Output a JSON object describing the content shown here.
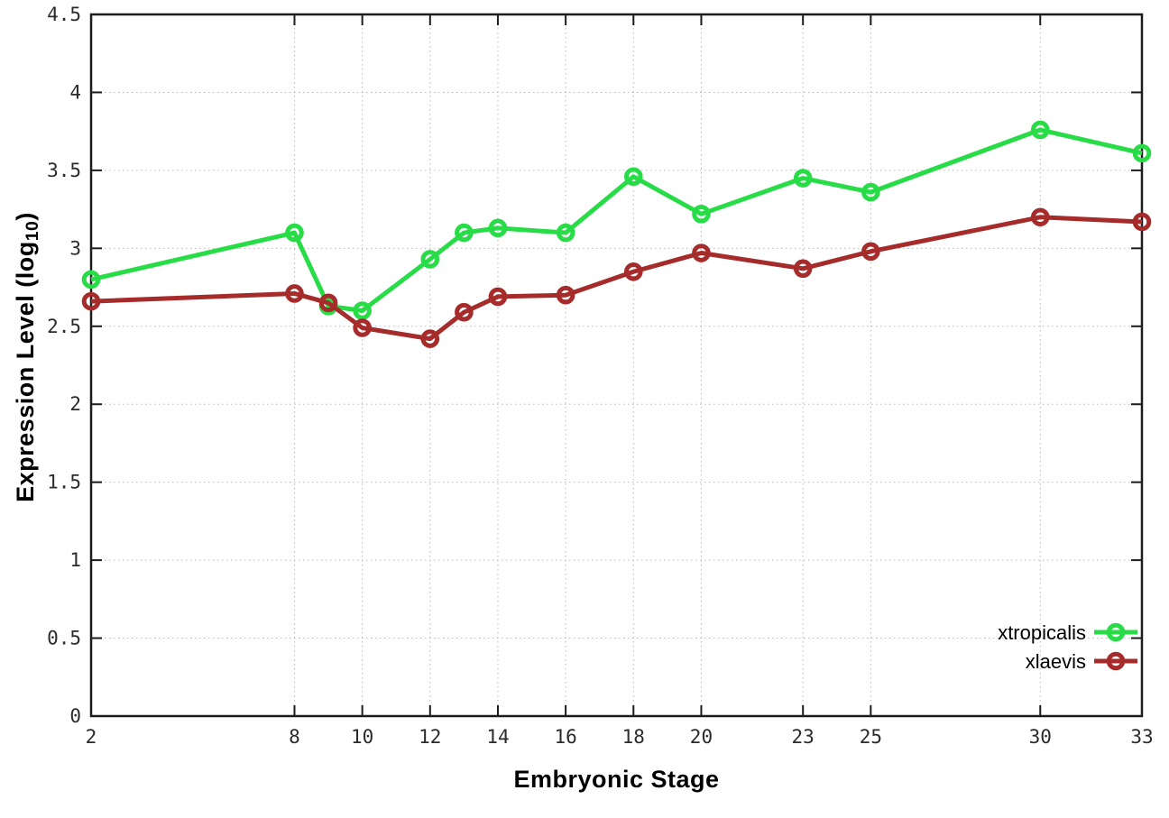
{
  "figure": {
    "xlabel": "Embryonic Stage",
    "ylabel_prefix": "Expression Level (log",
    "ylabel_sub": "10",
    "ylabel_suffix": ")"
  },
  "chart_data": {
    "type": "line",
    "title": "",
    "xlabel": "Embryonic Stage",
    "ylabel": "Expression Level (log10)",
    "xlim": [
      2,
      33
    ],
    "ylim": [
      0,
      4.5
    ],
    "grid": true,
    "legend_position": "bottom-right",
    "x_ticks": [
      2,
      8,
      10,
      12,
      14,
      16,
      18,
      20,
      23,
      25,
      30,
      33
    ],
    "x_tick_labels": [
      "2",
      "8",
      "10",
      "12",
      "14",
      "16",
      "18",
      "20",
      "23",
      "25",
      "30",
      "33"
    ],
    "y_ticks": [
      0,
      0.5,
      1,
      1.5,
      2,
      2.5,
      3,
      3.5,
      4,
      4.5
    ],
    "y_tick_labels": [
      "0",
      "0.5",
      "1",
      "1.5",
      "2",
      "2.5",
      "3",
      "3.5",
      "4",
      "4.5"
    ],
    "x": [
      2,
      8,
      9,
      10,
      12,
      13,
      14,
      16,
      18,
      20,
      23,
      25,
      30,
      33
    ],
    "series": [
      {
        "name": "xtropicalis",
        "color": "#27dc46",
        "values": [
          2.8,
          3.1,
          2.63,
          2.6,
          2.93,
          3.1,
          3.13,
          3.1,
          3.46,
          3.22,
          3.45,
          3.36,
          3.76,
          3.61
        ]
      },
      {
        "name": "xlaevis",
        "color": "#a62b2b",
        "values": [
          2.66,
          2.71,
          2.65,
          2.49,
          2.42,
          2.59,
          2.69,
          2.7,
          2.85,
          2.97,
          2.87,
          2.98,
          3.2,
          3.17
        ]
      }
    ]
  },
  "style": {
    "axis_color": "#1c1c1c",
    "grid_color": "#b8b8b8",
    "tick_label_color": "#2b2b2b",
    "background": "#ffffff"
  }
}
